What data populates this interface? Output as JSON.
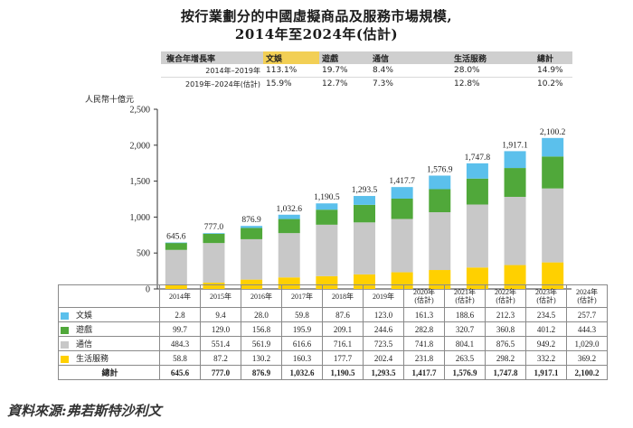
{
  "title_line1": "按行業劃分的中國虛擬商品及服務市場規模,",
  "title_line2": "2014年至2024年(估計)",
  "cagr_table": {
    "header": [
      "複合年增長率",
      "文娛",
      "遊戲",
      "通信",
      "生活服務",
      "總計"
    ],
    "rows": [
      {
        "label": "2014年–2019年",
        "values": [
          "113.1%",
          "19.7%",
          "8.4%",
          "28.0%",
          "14.9%"
        ]
      },
      {
        "label": "2019年–2024年(估計)",
        "values": [
          "15.9%",
          "12.7%",
          "7.3%",
          "12.8%",
          "10.2%"
        ]
      }
    ]
  },
  "source": "資料來源:弗若斯特沙利文",
  "colors": {
    "文娛": "#5bc0ec",
    "遊戲": "#50a83a",
    "通信": "#c8c8c8",
    "生活服務": "#ffd000"
  },
  "chart_data": {
    "type": "bar",
    "stacked": true,
    "ylabel": "人民幣十億元",
    "ylim": [
      0,
      2500
    ],
    "yticks": [
      0,
      500,
      1000,
      1500,
      2000,
      2500
    ],
    "ytick_labels": [
      "0",
      "500",
      "1,000",
      "1,500",
      "2,000",
      "2,500"
    ],
    "categories": [
      "2014年",
      "2015年",
      "2016年",
      "2017年",
      "2018年",
      "2019年",
      "2020年(估計)",
      "2021年(估計)",
      "2022年(估計)",
      "2023年(估計)",
      "2024年(估計)"
    ],
    "series": [
      {
        "name": "生活服務",
        "color": "#ffd000",
        "values": [
          58.8,
          87.2,
          130.2,
          160.3,
          177.7,
          202.4,
          231.8,
          263.5,
          298.2,
          332.2,
          369.2
        ],
        "labels": [
          "58.8",
          "87.2",
          "130.2",
          "160.3",
          "177.7",
          "202.4",
          "231.8",
          "263.5",
          "298.2",
          "332.2",
          "369.2"
        ]
      },
      {
        "name": "通信",
        "color": "#c8c8c8",
        "values": [
          484.3,
          551.4,
          561.9,
          616.6,
          716.1,
          723.5,
          741.8,
          804.1,
          876.5,
          949.2,
          1029.0
        ],
        "labels": [
          "484.3",
          "551.4",
          "561.9",
          "616.6",
          "716.1",
          "723.5",
          "741.8",
          "804.1",
          "876.5",
          "949.2",
          "1,029.0"
        ]
      },
      {
        "name": "遊戲",
        "color": "#50a83a",
        "values": [
          99.7,
          129.0,
          156.8,
          195.9,
          209.1,
          244.6,
          282.8,
          320.7,
          360.8,
          401.2,
          444.3
        ],
        "labels": [
          "99.7",
          "129.0",
          "156.8",
          "195.9",
          "209.1",
          "244.6",
          "282.8",
          "320.7",
          "360.8",
          "401.2",
          "444.3"
        ]
      },
      {
        "name": "文娛",
        "color": "#5bc0ec",
        "values": [
          2.8,
          9.4,
          28.0,
          59.8,
          87.6,
          123.0,
          161.3,
          188.6,
          212.3,
          234.5,
          257.7
        ],
        "labels": [
          "2.8",
          "9.4",
          "28.0",
          "59.8",
          "87.6",
          "123.0",
          "161.3",
          "188.6",
          "212.3",
          "234.5",
          "257.7"
        ]
      }
    ],
    "totals_name": "總計",
    "totals": [
      645.6,
      777.0,
      876.9,
      1032.6,
      1190.5,
      1293.5,
      1417.7,
      1576.9,
      1747.8,
      1917.1,
      2100.2
    ],
    "total_labels": [
      "645.6",
      "777.0",
      "876.9",
      "1,032.6",
      "1,190.5",
      "1,293.5",
      "1,417.7",
      "1,576.9",
      "1,747.8",
      "1,917.1",
      "2,100.2"
    ],
    "total_labels_bold": [
      "645.6",
      "777.0",
      "876.9",
      "1,032.6",
      "1,190.5",
      "1,293.5",
      "1,417.7",
      "1,576.9",
      "1,747.8",
      "1,917.1",
      "2,100.2"
    ]
  }
}
